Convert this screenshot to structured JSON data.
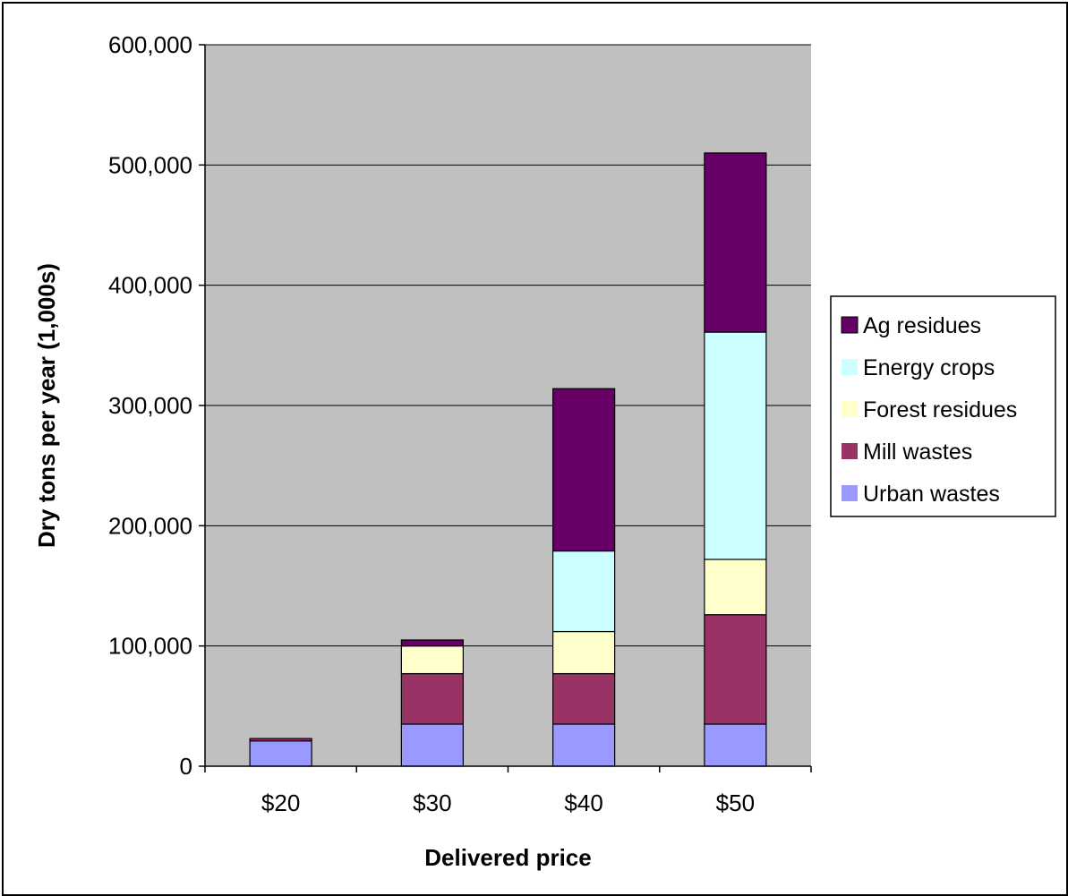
{
  "chart_data": {
    "type": "bar",
    "stacked": true,
    "categories": [
      "$20",
      "$30",
      "$40",
      "$50"
    ],
    "series": [
      {
        "name": "Urban wastes",
        "color": "#9999FF",
        "values": [
          21000,
          35000,
          35000,
          35000
        ]
      },
      {
        "name": "Mill wastes",
        "color": "#993366",
        "values": [
          2000,
          42000,
          42000,
          91000
        ]
      },
      {
        "name": "Forest residues",
        "color": "#FFFFCC",
        "values": [
          0,
          23000,
          35000,
          46000
        ]
      },
      {
        "name": "Energy crops",
        "color": "#CCFFFF",
        "values": [
          0,
          0,
          67000,
          189000
        ]
      },
      {
        "name": "Ag residues",
        "color": "#660066",
        "values": [
          0,
          5000,
          135000,
          149000
        ]
      }
    ],
    "title": "",
    "xlabel": "Delivered price",
    "ylabel": "Dry tons per year (1,000s)",
    "ylim": [
      0,
      600000
    ],
    "yticks": [
      0,
      100000,
      200000,
      300000,
      400000,
      500000,
      600000
    ],
    "ytick_labels": [
      "0",
      "100,000",
      "200,000",
      "300,000",
      "400,000",
      "500,000",
      "600,000"
    ],
    "grid": true,
    "plot_background": "#C0C0C0",
    "legend_position": "right",
    "legend_order": [
      "Ag residues",
      "Energy crops",
      "Forest residues",
      "Mill wastes",
      "Urban wastes"
    ]
  }
}
